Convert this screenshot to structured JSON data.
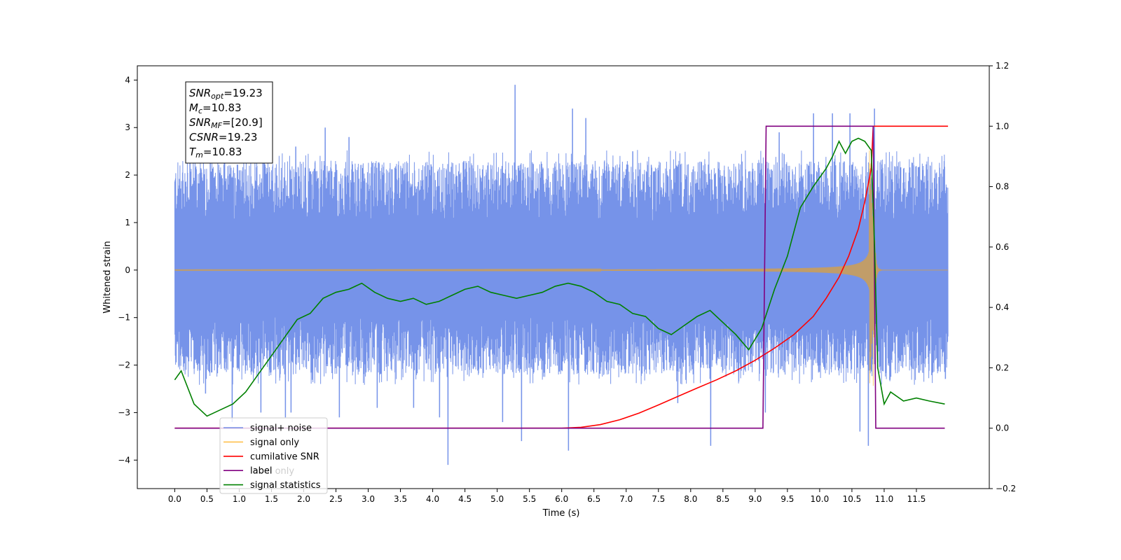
{
  "chart_data": {
    "type": "line",
    "xlabel": "Time (s)",
    "ylabel": "Whitened strain",
    "xlim": [
      -0.58,
      12.63
    ],
    "ylim": [
      -4.6,
      4.3
    ],
    "y2lim": [
      -0.2,
      1.2
    ],
    "x_ticks": [
      "0.0",
      "0.5",
      "1.0",
      "1.5",
      "2.0",
      "2.5",
      "3.0",
      "3.5",
      "4.0",
      "4.5",
      "5.0",
      "5.5",
      "6.0",
      "6.5",
      "7.0",
      "7.5",
      "8.0",
      "8.5",
      "9.0",
      "9.5",
      "10.0",
      "10.5",
      "11.0",
      "11.5"
    ],
    "y_ticks": [
      "4",
      "3",
      "2",
      "1",
      "0",
      "−1",
      "−2",
      "−3",
      "−4"
    ],
    "y2_ticks": [
      "1.2",
      "1.0",
      "0.8",
      "0.6",
      "0.4",
      "0.2",
      "0.0",
      "−0.2"
    ],
    "annotation_lines": [
      {
        "sym": "SNR",
        "sub": "opt",
        "val": "=19.23"
      },
      {
        "sym": "M",
        "sub": "c",
        "val": "=10.83"
      },
      {
        "sym": "SNR",
        "sub": "MF",
        "val": "=[20.9]"
      },
      {
        "sym": "CSNR",
        "sub": "",
        "val": "=19.23"
      },
      {
        "sym": "T",
        "sub": "m",
        "val": "=10.83"
      }
    ],
    "legend": {
      "placement": "lower-left",
      "entries": [
        {
          "label": "signal+ noise",
          "color": "#4169e1"
        },
        {
          "label": "signal only",
          "color": "#ffa500"
        },
        {
          "label": "cumilative SNR",
          "color": "#ff0000"
        },
        {
          "label": "label",
          "color": "#800080"
        },
        {
          "label": "signal statistics",
          "color": "#008000"
        }
      ],
      "hidden_text_behind": [
        "label only",
        "signal statistics"
      ]
    },
    "series": [
      {
        "name": "signal+ noise",
        "axis": "left",
        "color": "#4169e1",
        "kind": "noise",
        "x_start": 0.0,
        "x_end": 11.99,
        "typical_max": 2.3,
        "typical_min": -2.2,
        "spikes": [
          [
            0.47,
            -2.6
          ],
          [
            0.55,
            2.6
          ],
          [
            0.89,
            -3.2
          ],
          [
            1.33,
            -3.0
          ],
          [
            1.71,
            -3.1
          ],
          [
            1.8,
            -3.0
          ],
          [
            1.87,
            2.6
          ],
          [
            2.33,
            3.0
          ],
          [
            2.55,
            -3.1
          ],
          [
            2.7,
            2.8
          ],
          [
            3.14,
            -2.9
          ],
          [
            3.7,
            -2.9
          ],
          [
            4.1,
            -3.1
          ],
          [
            4.23,
            -4.1
          ],
          [
            5.08,
            -3.2
          ],
          [
            5.27,
            3.9
          ],
          [
            5.37,
            -3.6
          ],
          [
            6.1,
            -3.8
          ],
          [
            6.17,
            3.4
          ],
          [
            6.37,
            3.2
          ],
          [
            7.1,
            2.5
          ],
          [
            7.8,
            -2.8
          ],
          [
            8.31,
            -3.7
          ],
          [
            9.15,
            -3.0
          ],
          [
            9.37,
            2.9
          ],
          [
            9.9,
            3.3
          ],
          [
            10.2,
            3.3
          ],
          [
            10.47,
            3.3
          ],
          [
            10.62,
            -3.4
          ],
          [
            10.75,
            -3.7
          ],
          [
            10.85,
            3.4
          ]
        ]
      },
      {
        "name": "signal only",
        "axis": "left",
        "color": "#ffa500",
        "kind": "chirp",
        "x_start": 0.0,
        "x_end": 11.99,
        "t_merger": 10.83,
        "peak_amplitude": 2.55
      },
      {
        "name": "cumilative SNR",
        "axis": "right",
        "color": "#ff0000",
        "x": [
          0.0,
          6.0,
          6.3,
          6.6,
          6.9,
          7.2,
          7.5,
          7.8,
          8.1,
          8.4,
          8.7,
          9.0,
          9.3,
          9.6,
          9.9,
          10.1,
          10.3,
          10.45,
          10.6,
          10.7,
          10.8,
          10.83,
          10.85,
          11.99
        ],
        "y": [
          0.0,
          0.0,
          0.003,
          0.012,
          0.028,
          0.05,
          0.077,
          0.105,
          0.133,
          0.16,
          0.19,
          0.225,
          0.265,
          0.31,
          0.37,
          0.43,
          0.5,
          0.57,
          0.66,
          0.75,
          0.86,
          1.0,
          1.0,
          1.0
        ]
      },
      {
        "name": "label",
        "axis": "right",
        "color": "#800080",
        "x": [
          0.0,
          9.12,
          9.17,
          10.83,
          10.87,
          11.94
        ],
        "y": [
          0.0,
          0.0,
          1.0,
          1.0,
          0.0,
          0.0
        ]
      },
      {
        "name": "signal statistics",
        "axis": "right",
        "color": "#008000",
        "x": [
          0.0,
          0.1,
          0.3,
          0.5,
          0.7,
          0.9,
          1.1,
          1.3,
          1.5,
          1.7,
          1.9,
          2.1,
          2.3,
          2.5,
          2.7,
          2.9,
          3.1,
          3.3,
          3.5,
          3.7,
          3.9,
          4.1,
          4.3,
          4.5,
          4.7,
          4.9,
          5.1,
          5.3,
          5.5,
          5.7,
          5.9,
          6.1,
          6.3,
          6.5,
          6.7,
          6.9,
          7.1,
          7.3,
          7.5,
          7.7,
          7.9,
          8.1,
          8.3,
          8.5,
          8.7,
          8.9,
          9.1,
          9.3,
          9.5,
          9.7,
          9.9,
          10.1,
          10.2,
          10.3,
          10.4,
          10.5,
          10.6,
          10.7,
          10.8,
          10.85,
          10.9,
          11.0,
          11.1,
          11.3,
          11.5,
          11.7,
          11.94
        ],
        "y": [
          0.16,
          0.19,
          0.08,
          0.04,
          0.06,
          0.08,
          0.12,
          0.18,
          0.24,
          0.3,
          0.36,
          0.38,
          0.43,
          0.45,
          0.46,
          0.48,
          0.45,
          0.43,
          0.42,
          0.43,
          0.41,
          0.42,
          0.44,
          0.46,
          0.47,
          0.45,
          0.44,
          0.43,
          0.44,
          0.45,
          0.47,
          0.48,
          0.47,
          0.45,
          0.42,
          0.41,
          0.38,
          0.37,
          0.33,
          0.31,
          0.34,
          0.37,
          0.39,
          0.35,
          0.31,
          0.26,
          0.33,
          0.46,
          0.57,
          0.73,
          0.8,
          0.86,
          0.9,
          0.95,
          0.91,
          0.95,
          0.96,
          0.95,
          0.92,
          0.61,
          0.2,
          0.08,
          0.12,
          0.09,
          0.1,
          0.09,
          0.08
        ]
      }
    ]
  }
}
